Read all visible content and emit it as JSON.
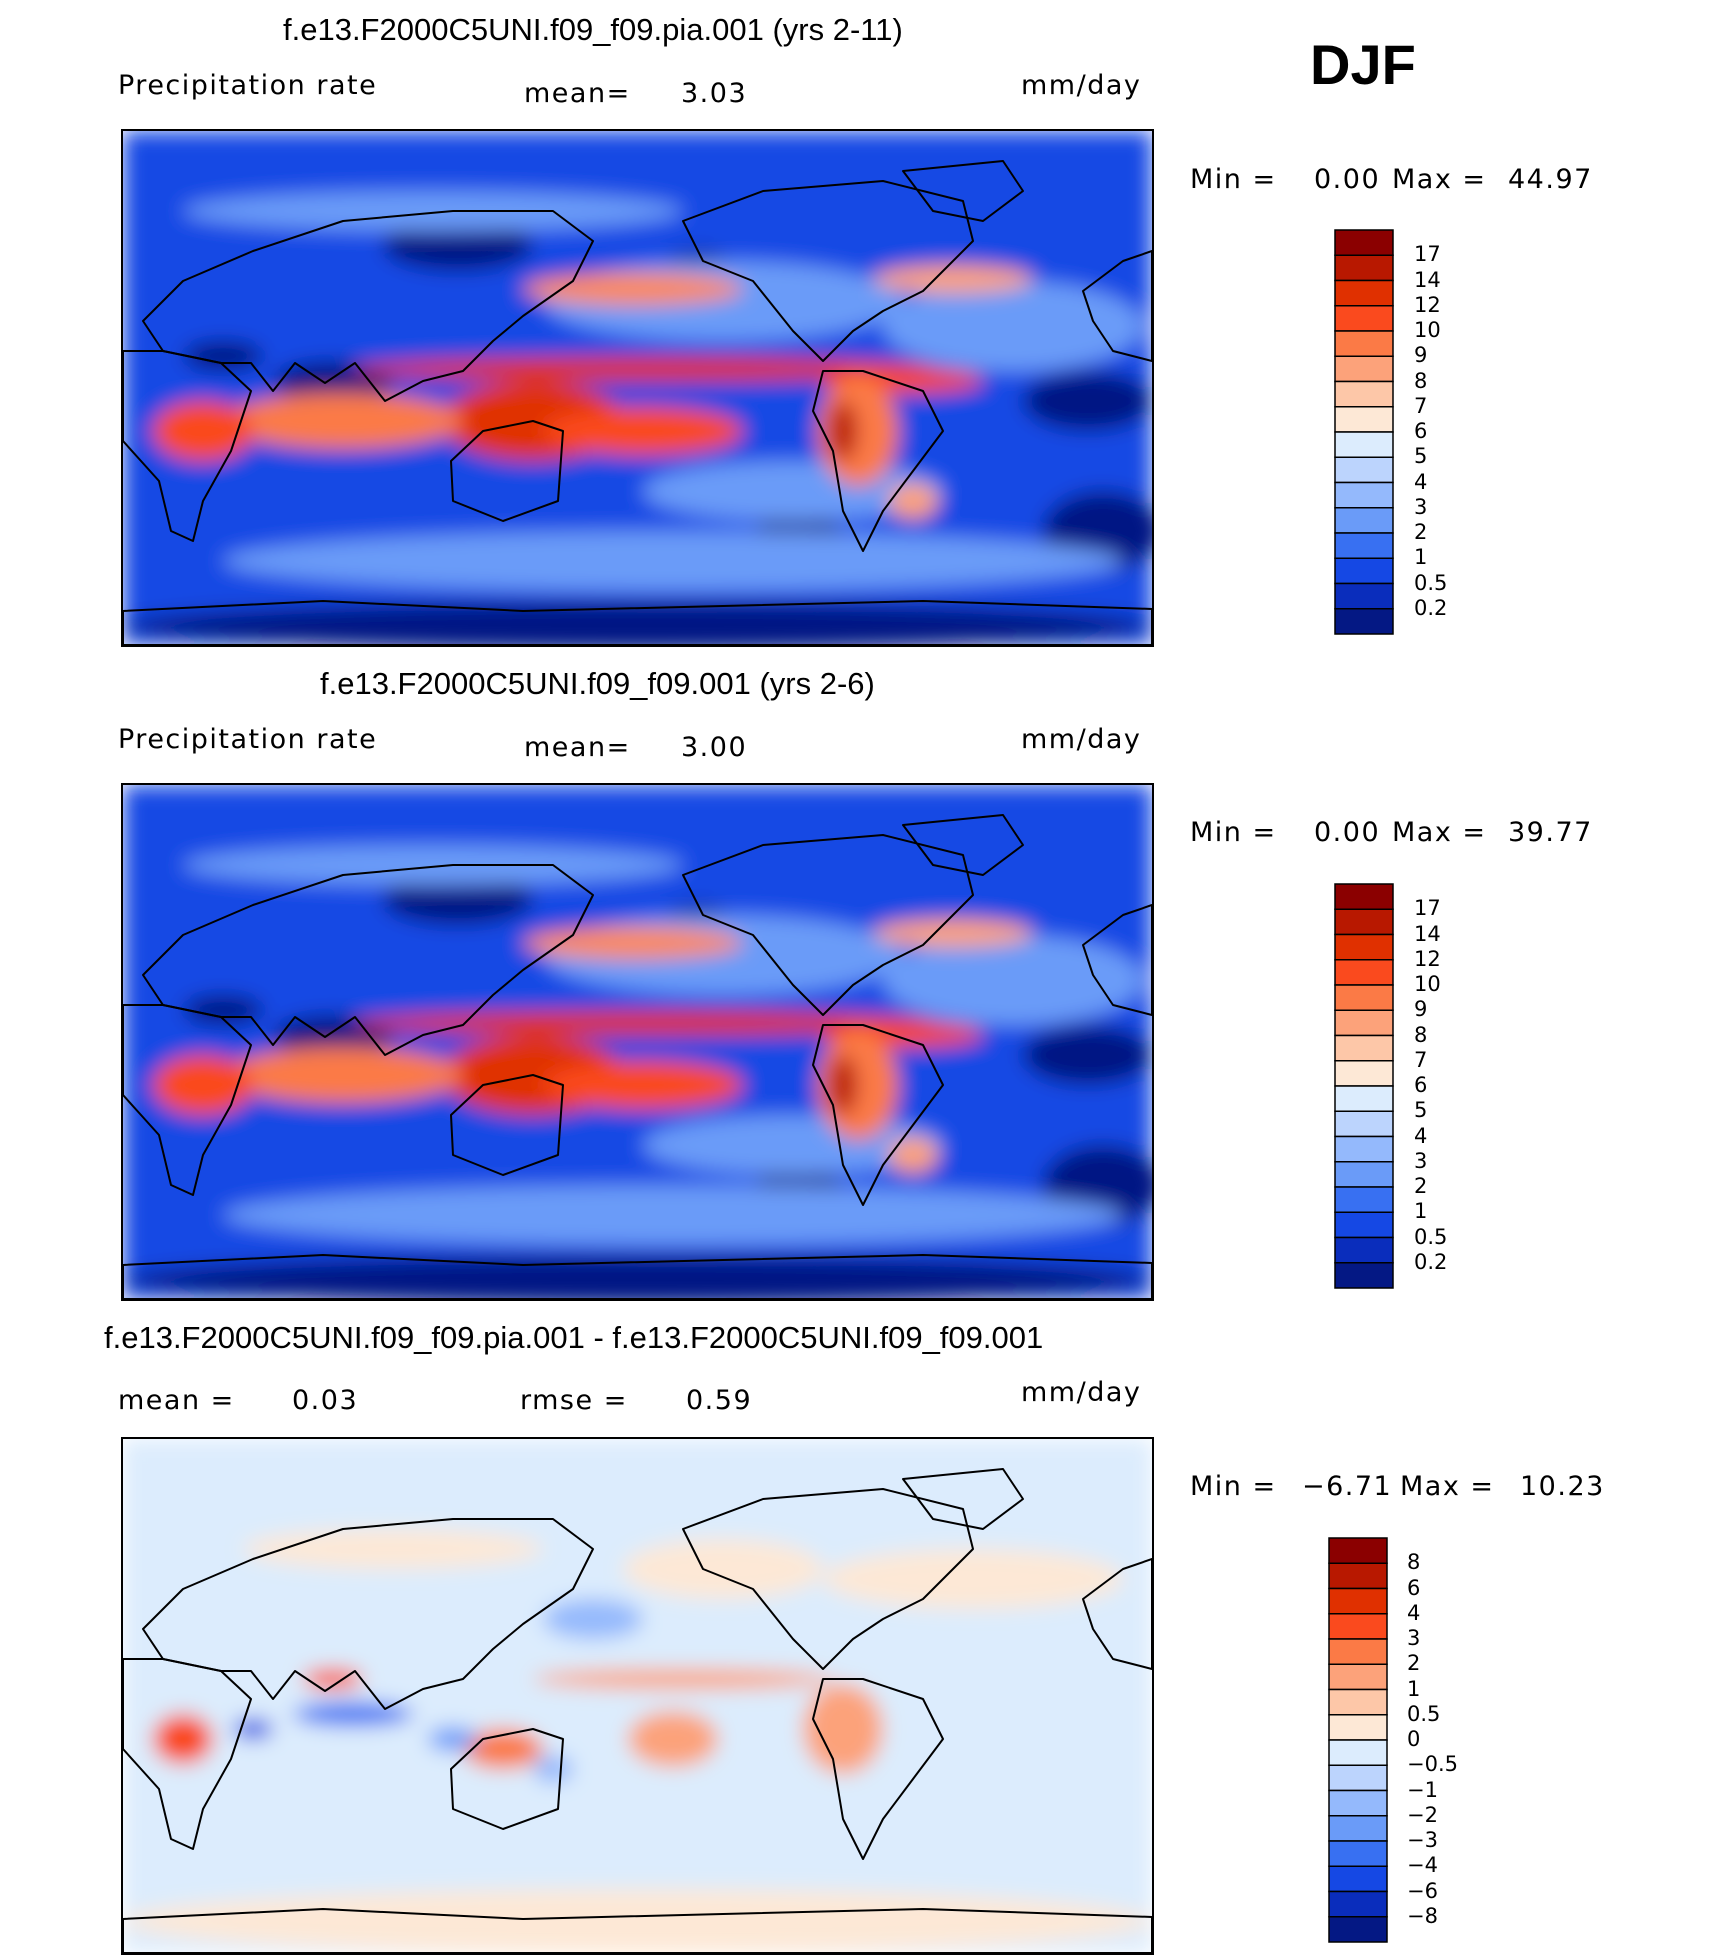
{
  "season": "DJF",
  "panels": [
    {
      "title": "f.e13.F2000C5UNI.f09_f09.pia.001 (yrs 2-11)",
      "left_label": "Precipitation  rate",
      "center_label": "mean=",
      "center_value": "3.03",
      "units": "mm/day",
      "minmax": {
        "min_label": "Min  =",
        "min": "0.00",
        "max_label": "Max  =",
        "max": "44.97"
      },
      "colorbar": {
        "ticks": [
          "17",
          "14",
          "12",
          "10",
          "9",
          "8",
          "7",
          "6",
          "5",
          "4",
          "3",
          "2",
          "1",
          "0.5",
          "0.2"
        ],
        "colors": [
          "#8b0000",
          "#b81800",
          "#e03000",
          "#fa4a1e",
          "#fb7a46",
          "#fca27a",
          "#fdc7a8",
          "#fde8d6",
          "#dcecfd",
          "#bcd4fd",
          "#94b9fc",
          "#6a9bf8",
          "#3870f2",
          "#1548e4",
          "#0a2dbc",
          "#041884"
        ]
      },
      "field": "total"
    },
    {
      "title": "f.e13.F2000C5UNI.f09_f09.001 (yrs 2-6)",
      "left_label": "Precipitation  rate",
      "center_label": "mean=",
      "center_value": "3.00",
      "units": "mm/day",
      "minmax": {
        "min_label": "Min  =",
        "min": "0.00",
        "max_label": "Max  =",
        "max": "39.77"
      },
      "colorbar": {
        "ticks": [
          "17",
          "14",
          "12",
          "10",
          "9",
          "8",
          "7",
          "6",
          "5",
          "4",
          "3",
          "2",
          "1",
          "0.5",
          "0.2"
        ],
        "colors": [
          "#8b0000",
          "#b81800",
          "#e03000",
          "#fa4a1e",
          "#fb7a46",
          "#fca27a",
          "#fdc7a8",
          "#fde8d6",
          "#dcecfd",
          "#bcd4fd",
          "#94b9fc",
          "#6a9bf8",
          "#3870f2",
          "#1548e4",
          "#0a2dbc",
          "#041884"
        ]
      },
      "field": "total"
    },
    {
      "title": "f.e13.F2000C5UNI.f09_f09.pia.001 - f.e13.F2000C5UNI.f09_f09.001",
      "left_label": "mean  =",
      "left_value": "0.03",
      "center_label": "rmse  =",
      "center_value": "0.59",
      "units": "mm/day",
      "minmax": {
        "min_label": "Min  =",
        "min": "−6.71",
        "max_label": "Max  =",
        "max": "10.23"
      },
      "colorbar": {
        "ticks": [
          "8",
          "6",
          "4",
          "3",
          "2",
          "1",
          "0.5",
          "0",
          "−0.5",
          "−1",
          "−2",
          "−3",
          "−4",
          "−6",
          "−8"
        ],
        "colors": [
          "#8b0000",
          "#b81800",
          "#e03000",
          "#fa4a1e",
          "#fb7a46",
          "#fca27a",
          "#fdc7a8",
          "#fde8d6",
          "#dcecfd",
          "#bcd4fd",
          "#94b9fc",
          "#6a9bf8",
          "#3870f2",
          "#1548e4",
          "#0a2dbc",
          "#041884"
        ]
      },
      "field": "difference"
    }
  ]
}
